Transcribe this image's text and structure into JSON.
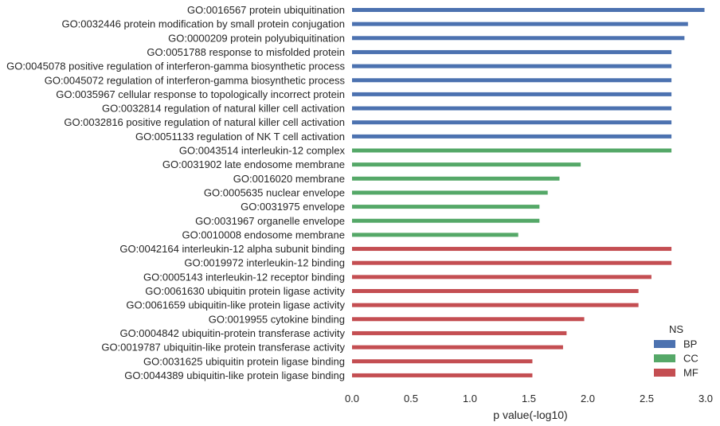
{
  "chart_data": {
    "type": "bar",
    "orientation": "horizontal",
    "xlabel": "p value(-log10)",
    "xlim": [
      0.0,
      3.0
    ],
    "xticks": [
      "0.0",
      "0.5",
      "1.0",
      "1.5",
      "2.0",
      "2.5",
      "3.0"
    ],
    "grid": false,
    "legend": {
      "title": "NS",
      "placement": "bottom-right",
      "entries": [
        {
          "name": "BP",
          "color": "#4c72b0"
        },
        {
          "name": "CC",
          "color": "#55a868"
        },
        {
          "name": "MF",
          "color": "#c44e52"
        }
      ]
    },
    "bars": [
      {
        "label": "GO:0016567 protein ubiquitination",
        "value": 2.99,
        "ns": "BP"
      },
      {
        "label": "GO:0032446 protein modification by small protein conjugation",
        "value": 2.85,
        "ns": "BP"
      },
      {
        "label": "GO:0000209 protein polyubiquitination",
        "value": 2.82,
        "ns": "BP"
      },
      {
        "label": "GO:0051788 response to misfolded protein",
        "value": 2.71,
        "ns": "BP"
      },
      {
        "label": "GO:0045078 positive regulation of interferon-gamma biosynthetic process",
        "value": 2.71,
        "ns": "BP"
      },
      {
        "label": "GO:0045072 regulation of interferon-gamma biosynthetic process",
        "value": 2.71,
        "ns": "BP"
      },
      {
        "label": "GO:0035967 cellular response to topologically incorrect protein",
        "value": 2.71,
        "ns": "BP"
      },
      {
        "label": "GO:0032814 regulation of natural killer cell activation",
        "value": 2.71,
        "ns": "BP"
      },
      {
        "label": "GO:0032816 positive regulation of natural killer cell activation",
        "value": 2.71,
        "ns": "BP"
      },
      {
        "label": "GO:0051133 regulation of NK T cell activation",
        "value": 2.71,
        "ns": "BP"
      },
      {
        "label": "GO:0043514 interleukin-12 complex",
        "value": 2.71,
        "ns": "CC"
      },
      {
        "label": "GO:0031902 late endosome membrane",
        "value": 1.94,
        "ns": "CC"
      },
      {
        "label": "GO:0016020 membrane",
        "value": 1.76,
        "ns": "CC"
      },
      {
        "label": "GO:0005635 nuclear envelope",
        "value": 1.66,
        "ns": "CC"
      },
      {
        "label": "GO:0031975 envelope",
        "value": 1.59,
        "ns": "CC"
      },
      {
        "label": "GO:0031967 organelle envelope",
        "value": 1.59,
        "ns": "CC"
      },
      {
        "label": "GO:0010008 endosome membrane",
        "value": 1.41,
        "ns": "CC"
      },
      {
        "label": "GO:0042164 interleukin-12 alpha subunit binding",
        "value": 2.71,
        "ns": "MF"
      },
      {
        "label": "GO:0019972 interleukin-12 binding",
        "value": 2.71,
        "ns": "MF"
      },
      {
        "label": "GO:0005143 interleukin-12 receptor binding",
        "value": 2.54,
        "ns": "MF"
      },
      {
        "label": "GO:0061630 ubiquitin protein ligase activity",
        "value": 2.43,
        "ns": "MF"
      },
      {
        "label": "GO:0061659 ubiquitin-like protein ligase activity",
        "value": 2.43,
        "ns": "MF"
      },
      {
        "label": "GO:0019955 cytokine binding",
        "value": 1.97,
        "ns": "MF"
      },
      {
        "label": "GO:0004842 ubiquitin-protein transferase activity",
        "value": 1.82,
        "ns": "MF"
      },
      {
        "label": "GO:0019787 ubiquitin-like protein transferase activity",
        "value": 1.79,
        "ns": "MF"
      },
      {
        "label": "GO:0031625 ubiquitin protein ligase binding",
        "value": 1.53,
        "ns": "MF"
      },
      {
        "label": "GO:0044389 ubiquitin-like protein ligase binding",
        "value": 1.53,
        "ns": "MF"
      }
    ]
  }
}
